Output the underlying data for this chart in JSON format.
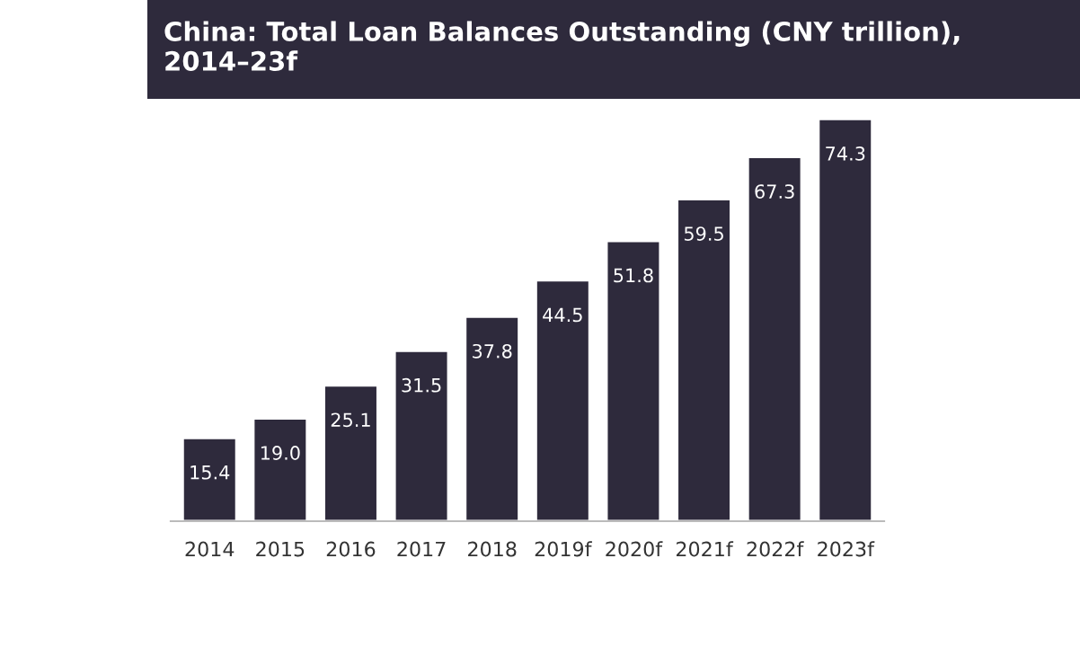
{
  "chart_data": {
    "type": "bar",
    "title": "China: Total Loan Balances Outstanding (CNY trillion), 2014–23f",
    "categories": [
      "2014",
      "2015",
      "2016",
      "2017",
      "2018",
      "2019f",
      "2020f",
      "2021f",
      "2022f",
      "2023f"
    ],
    "values": [
      15.4,
      19.0,
      25.1,
      31.5,
      37.8,
      44.5,
      51.8,
      59.5,
      67.3,
      74.3
    ],
    "value_labels": [
      "15.4",
      "19.0",
      "25.1",
      "31.5",
      "37.8",
      "44.5",
      "51.8",
      "59.5",
      "67.3",
      "74.3"
    ],
    "color": "#2e2a3c",
    "grid": false,
    "legend": false,
    "tick_labels": "x"
  }
}
